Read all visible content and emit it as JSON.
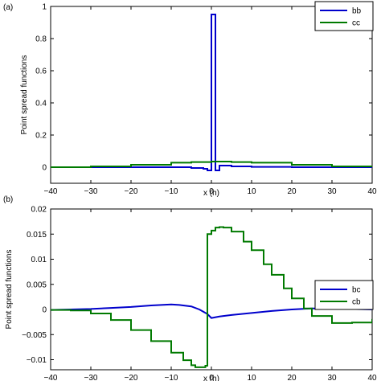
{
  "chart_data": [
    {
      "type": "line",
      "panel_label": "(a)",
      "xlabel": "x (h)",
      "ylabel": "Point spread functions",
      "xlim": [
        -40,
        40
      ],
      "ylim": [
        -0.1,
        1.0
      ],
      "xticks": [
        -40,
        -30,
        -20,
        -10,
        0,
        10,
        20,
        30,
        40
      ],
      "yticks": [
        0,
        0.2,
        0.4,
        0.6,
        0.8,
        1
      ],
      "ytick_labels": [
        "0",
        "0.2",
        "0.4",
        "0.6",
        "0.8",
        "1"
      ],
      "grid": false,
      "legend_position": "top-right",
      "series": [
        {
          "name": "bb",
          "color": "#0000cc",
          "step": true,
          "x": [
            -40,
            -10,
            -5,
            -2,
            -1,
            0,
            1,
            2,
            5,
            10,
            20,
            40
          ],
          "y": [
            0,
            0,
            -0.005,
            -0.01,
            -0.02,
            0.95,
            -0.02,
            0.01,
            0.005,
            0.002,
            0,
            0
          ]
        },
        {
          "name": "cc",
          "color": "#007a00",
          "step": true,
          "x": [
            -40,
            -30,
            -20,
            -10,
            -5,
            0,
            5,
            10,
            20,
            30,
            40
          ],
          "y": [
            0,
            0.005,
            0.015,
            0.028,
            0.032,
            0.035,
            0.032,
            0.028,
            0.015,
            0.005,
            0
          ]
        }
      ]
    },
    {
      "type": "line",
      "panel_label": "(b)",
      "xlabel": "x (h)",
      "ylabel": "Point spread functions",
      "xlim": [
        -40,
        40
      ],
      "ylim": [
        -0.012,
        0.02
      ],
      "xticks": [
        -40,
        -30,
        -20,
        -10,
        0,
        10,
        20,
        30,
        40
      ],
      "yticks": [
        -0.01,
        -0.005,
        0,
        0.005,
        0.01,
        0.015,
        0.02
      ],
      "ytick_labels": [
        "-0.01",
        "-0.005",
        "0",
        "0.005",
        "0.01",
        "0.015",
        "0.02"
      ],
      "grid": false,
      "legend_position": "top-right",
      "series": [
        {
          "name": "bc",
          "color": "#0000cc",
          "step": false,
          "x": [
            -40,
            -35,
            -30,
            -25,
            -20,
            -15,
            -10,
            -8,
            -5,
            -3,
            -1,
            0,
            2,
            5,
            10,
            15,
            20,
            25,
            30,
            35,
            40
          ],
          "y": [
            -0.0001,
            0,
            0.0001,
            0.0003,
            0.0005,
            0.0008,
            0.001,
            0.0009,
            0.0006,
            0.0,
            -0.0009,
            -0.0017,
            -0.0014,
            -0.0011,
            -0.0007,
            -0.0003,
            0.0,
            0.0002,
            0.0002,
            0.0001,
            0.0
          ]
        },
        {
          "name": "cb",
          "color": "#007a00",
          "step": true,
          "x": [
            -40,
            -35,
            -30,
            -25,
            -20,
            -15,
            -10,
            -7,
            -5,
            -4,
            -2,
            -1.5,
            -1,
            0,
            1,
            2,
            3,
            5,
            8,
            10,
            13,
            15,
            18,
            20,
            23,
            25,
            30,
            35,
            40
          ],
          "y": [
            -0.0001,
            -0.0002,
            -0.0008,
            -0.0021,
            -0.0041,
            -0.0063,
            -0.0086,
            -0.0101,
            -0.0111,
            -0.0115,
            -0.0115,
            -0.0112,
            0.015,
            0.0157,
            0.0163,
            0.0164,
            0.0163,
            0.0155,
            0.0135,
            0.0118,
            0.009,
            0.0069,
            0.0042,
            0.0022,
            0.0002,
            -0.0013,
            -0.0027,
            -0.0026,
            -0.0019
          ]
        }
      ]
    }
  ]
}
